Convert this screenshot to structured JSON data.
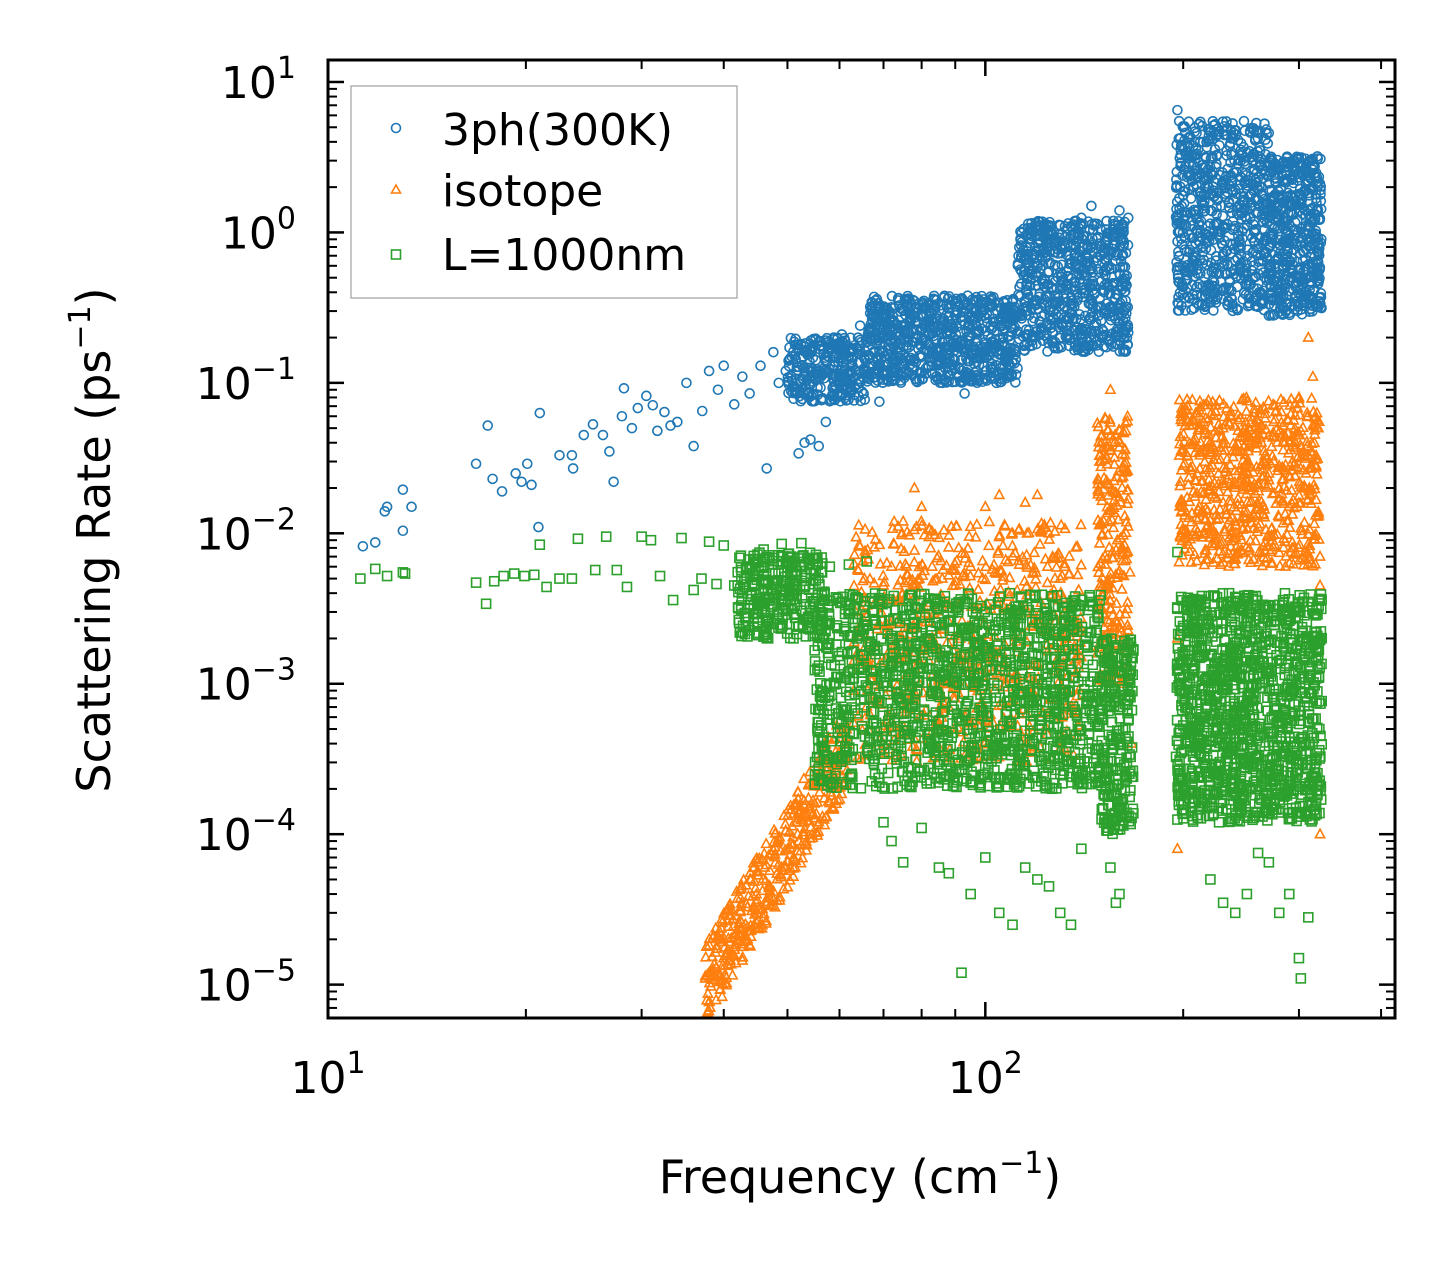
{
  "chart_data": {
    "type": "scatter",
    "title": "",
    "xlabel": "Frequency (cm",
    "xlabel_sup": "−1",
    "xlabel_end": ")",
    "ylabel": "Scattering Rate (ps",
    "ylabel_sup": "−1",
    "ylabel_end": ")",
    "xscale": "log",
    "yscale": "log",
    "xlim": [
      10,
      420
    ],
    "ylim": [
      6e-06,
      14
    ],
    "legend_position": "top-left",
    "x_ticks": [
      {
        "value": 10,
        "base": "10",
        "exp": "1"
      },
      {
        "value": 100,
        "base": "10",
        "exp": "2"
      }
    ],
    "y_ticks": [
      {
        "value": 10,
        "base": "10",
        "exp": "1"
      },
      {
        "value": 1,
        "base": "10",
        "exp": "0"
      },
      {
        "value": 0.1,
        "base": "10",
        "exp": "−1"
      },
      {
        "value": 0.01,
        "base": "10",
        "exp": "−2"
      },
      {
        "value": 0.001,
        "base": "10",
        "exp": "−3"
      },
      {
        "value": 0.0001,
        "base": "10",
        "exp": "−4"
      },
      {
        "value": 1e-05,
        "base": "10",
        "exp": "−5"
      }
    ],
    "series": [
      {
        "name": "3ph(300K)",
        "marker": "circle",
        "color": "#1f77b4",
        "points": [
          [
            11.3,
            0.0082
          ],
          [
            11.8,
            0.0087
          ],
          [
            12.2,
            0.014
          ],
          [
            12.3,
            0.015
          ],
          [
            13.0,
            0.0104
          ],
          [
            13.0,
            0.0195
          ],
          [
            13.4,
            0.015
          ],
          [
            16.8,
            0.029
          ],
          [
            17.5,
            0.052
          ],
          [
            17.8,
            0.023
          ],
          [
            18.4,
            0.019
          ],
          [
            19.3,
            0.025
          ],
          [
            19.7,
            0.022
          ],
          [
            20.1,
            0.029
          ],
          [
            20.4,
            0.021
          ],
          [
            20.9,
            0.011
          ],
          [
            21.0,
            0.063
          ],
          [
            22.5,
            0.033
          ],
          [
            23.5,
            0.033
          ],
          [
            23.6,
            0.027
          ],
          [
            24.5,
            0.045
          ],
          [
            25.3,
            0.053
          ],
          [
            26.2,
            0.045
          ],
          [
            26.8,
            0.035
          ],
          [
            27.2,
            0.022
          ],
          [
            28.0,
            0.06
          ],
          [
            28.2,
            0.092
          ],
          [
            29.0,
            0.05
          ],
          [
            29.6,
            0.068
          ],
          [
            30.5,
            0.082
          ],
          [
            31.2,
            0.071
          ],
          [
            31.7,
            0.048
          ],
          [
            32.5,
            0.064
          ],
          [
            33.2,
            0.052
          ],
          [
            34.0,
            0.055
          ],
          [
            35.1,
            0.1
          ],
          [
            36.0,
            0.038
          ],
          [
            37.1,
            0.065
          ],
          [
            38.0,
            0.12
          ],
          [
            39.2,
            0.09
          ],
          [
            40.0,
            0.13
          ],
          [
            41.5,
            0.072
          ],
          [
            42.7,
            0.11
          ],
          [
            43.8,
            0.085
          ],
          [
            45.5,
            0.13
          ],
          [
            46.5,
            0.027
          ],
          [
            47.6,
            0.16
          ],
          [
            48.5,
            0.1
          ],
          [
            49.7,
            0.12
          ],
          [
            51.3,
            0.15
          ],
          [
            52.0,
            0.034
          ],
          [
            53.1,
            0.04
          ],
          [
            54.2,
            0.042
          ],
          [
            55.8,
            0.038
          ],
          [
            57.2,
            0.055
          ],
          [
            58.8,
            0.2
          ],
          [
            60.5,
            0.21
          ],
          [
            62.3,
            0.09
          ],
          [
            64.5,
            0.24
          ],
          [
            66.8,
            0.29
          ],
          [
            69.0,
            0.075
          ],
          [
            70.0,
            0.13
          ],
          [
            72.5,
            0.26
          ],
          [
            75.0,
            0.24
          ],
          [
            78.0,
            0.35
          ],
          [
            80.0,
            0.2
          ],
          [
            83.0,
            0.29
          ],
          [
            86.0,
            0.1
          ],
          [
            90.0,
            0.18
          ],
          [
            93.0,
            0.085
          ],
          [
            97.0,
            0.31
          ],
          [
            100.0,
            0.22
          ],
          [
            104.0,
            0.1
          ],
          [
            108.0,
            0.27
          ],
          [
            112.0,
            0.22
          ],
          [
            116.0,
            0.5
          ],
          [
            120.0,
            0.62
          ],
          [
            125.0,
            0.55
          ],
          [
            130.0,
            0.8
          ],
          [
            135.0,
            0.95
          ],
          [
            140.0,
            1.25
          ],
          [
            145.0,
            1.5
          ],
          [
            150.0,
            0.7
          ],
          [
            155.0,
            1.0
          ],
          [
            160.0,
            1.4
          ],
          [
            165.0,
            1.25
          ],
          [
            196.0,
            6.5
          ],
          [
            200.0,
            5.0
          ],
          [
            210.0,
            2.6
          ],
          [
            220.0,
            1.8
          ],
          [
            230.0,
            1.1
          ],
          [
            240.0,
            0.65
          ],
          [
            250.0,
            0.45
          ],
          [
            260.0,
            0.32
          ],
          [
            270.0,
            0.28
          ],
          [
            280.0,
            0.42
          ],
          [
            290.0,
            0.9
          ],
          [
            300.0,
            1.8
          ],
          [
            310.0,
            2.4
          ],
          [
            315.0,
            2.8
          ],
          [
            320.0,
            3.2
          ]
        ],
        "bands": [
          {
            "x_from": 50,
            "x_to": 66,
            "y_low": 0.075,
            "y_high": 0.2,
            "count": 300
          },
          {
            "x_from": 66,
            "x_to": 112,
            "y_low": 0.1,
            "y_high": 0.38,
            "count": 800
          },
          {
            "x_from": 112,
            "x_to": 165,
            "y_low": 0.16,
            "y_high": 1.2,
            "count": 700
          },
          {
            "x_from": 195,
            "x_to": 270,
            "y_low": 0.3,
            "y_high": 5.5,
            "count": 700
          },
          {
            "x_from": 270,
            "x_to": 325,
            "y_low": 0.28,
            "y_high": 3.2,
            "count": 500
          }
        ]
      },
      {
        "name": "isotope",
        "marker": "triangle",
        "color": "#ff7f0e",
        "points": [
          [
            37.5,
            1.1e-05
          ],
          [
            38.0,
            1.2e-05
          ],
          [
            39.0,
            1.3e-05
          ],
          [
            40.5,
            1.6e-05
          ],
          [
            42.0,
            2e-05
          ],
          [
            43.5,
            2.4e-05
          ],
          [
            45.0,
            3e-05
          ],
          [
            47.0,
            4.2e-05
          ],
          [
            49.0,
            6e-05
          ],
          [
            51.0,
            8.5e-05
          ],
          [
            53.0,
            0.00012
          ],
          [
            55.0,
            0.00016
          ],
          [
            57.0,
            0.00022
          ],
          [
            59.0,
            0.0003
          ],
          [
            61.0,
            0.0004
          ],
          [
            63.0,
            0.00055
          ],
          [
            66.0,
            0.0028
          ],
          [
            68.0,
            0.0035
          ],
          [
            70.0,
            0.0045
          ],
          [
            72.0,
            0.006
          ],
          [
            75.0,
            0.012
          ],
          [
            78.0,
            0.02
          ],
          [
            80.0,
            0.015
          ],
          [
            83.0,
            0.006
          ],
          [
            86.0,
            0.005
          ],
          [
            90.0,
            0.0045
          ],
          [
            95.0,
            0.006
          ],
          [
            100.0,
            0.015
          ],
          [
            105.0,
            0.018
          ],
          [
            110.0,
            0.01
          ],
          [
            115.0,
            0.016
          ],
          [
            120.0,
            0.018
          ],
          [
            125.0,
            0.01
          ],
          [
            130.0,
            0.005
          ],
          [
            140.0,
            0.0015
          ],
          [
            150.0,
            0.03
          ],
          [
            155.0,
            0.09
          ],
          [
            160.0,
            0.04
          ],
          [
            163.0,
            0.013
          ],
          [
            196.0,
            0.002
          ],
          [
            200.0,
            0.01
          ],
          [
            210.0,
            0.025
          ],
          [
            220.0,
            0.04
          ],
          [
            230.0,
            0.05
          ],
          [
            240.0,
            0.035
          ],
          [
            250.0,
            0.03
          ],
          [
            260.0,
            0.05
          ],
          [
            270.0,
            0.025
          ],
          [
            280.0,
            0.02
          ],
          [
            290.0,
            0.04
          ],
          [
            300.0,
            0.08
          ],
          [
            310.0,
            0.2
          ],
          [
            315.0,
            0.11
          ],
          [
            320.0,
            0.05
          ],
          [
            323.0,
            0.007
          ],
          [
            323.0,
            0.0045
          ],
          [
            323.0,
            0.0001
          ],
          [
            196.0,
            8e-05
          ],
          [
            166.0,
            0.0055
          ],
          [
            167.0,
            0.0004
          ]
        ],
        "bands": [
          {
            "x_from": 37.5,
            "x_to": 62,
            "y_low": 1e-05,
            "y_high": 0.0004,
            "count": 400,
            "trend": "rising"
          },
          {
            "x_from": 63,
            "x_to": 140,
            "y_low": 0.0003,
            "y_high": 0.012,
            "count": 700
          },
          {
            "x_from": 148,
            "x_to": 165,
            "y_low": 0.001,
            "y_high": 0.06,
            "count": 250
          },
          {
            "x_from": 197,
            "x_to": 322,
            "y_low": 0.006,
            "y_high": 0.08,
            "count": 700
          }
        ]
      },
      {
        "name": "L=1000nm",
        "marker": "square",
        "color": "#2ca02c",
        "points": [
          [
            11.2,
            0.005
          ],
          [
            11.8,
            0.0058
          ],
          [
            12.3,
            0.0052
          ],
          [
            13.0,
            0.0055
          ],
          [
            13.1,
            0.0054
          ],
          [
            16.8,
            0.0047
          ],
          [
            17.4,
            0.0034
          ],
          [
            17.9,
            0.0048
          ],
          [
            18.5,
            0.0052
          ],
          [
            19.2,
            0.0054
          ],
          [
            19.9,
            0.0052
          ],
          [
            20.6,
            0.0053
          ],
          [
            21.0,
            0.0084
          ],
          [
            21.5,
            0.0044
          ],
          [
            22.5,
            0.005
          ],
          [
            23.5,
            0.005
          ],
          [
            24.0,
            0.0092
          ],
          [
            25.5,
            0.0057
          ],
          [
            26.5,
            0.0095
          ],
          [
            27.5,
            0.0057
          ],
          [
            28.5,
            0.0044
          ],
          [
            30.0,
            0.0095
          ],
          [
            31.0,
            0.009
          ],
          [
            32.0,
            0.0052
          ],
          [
            33.5,
            0.0036
          ],
          [
            34.5,
            0.0093
          ],
          [
            36.0,
            0.0042
          ],
          [
            37.0,
            0.005
          ],
          [
            38.0,
            0.0088
          ],
          [
            39.0,
            0.0046
          ],
          [
            40.0,
            0.0083
          ],
          [
            41.5,
            0.0045
          ],
          [
            43.0,
            0.0044
          ],
          [
            44.5,
            0.0046
          ],
          [
            46.0,
            0.0078
          ],
          [
            47.5,
            0.004
          ],
          [
            49.0,
            0.0085
          ],
          [
            51.0,
            0.0062
          ],
          [
            52.5,
            0.0086
          ],
          [
            55.0,
            0.0068
          ],
          [
            58.0,
            0.006
          ],
          [
            62.0,
            0.0062
          ],
          [
            66.0,
            0.0065
          ],
          [
            70.0,
            0.00012
          ],
          [
            72.0,
            9e-05
          ],
          [
            75.0,
            6.5e-05
          ],
          [
            80.0,
            0.00011
          ],
          [
            85.0,
            6e-05
          ],
          [
            88.0,
            5.5e-05
          ],
          [
            92.0,
            1.2e-05
          ],
          [
            95.0,
            4e-05
          ],
          [
            100.0,
            7e-05
          ],
          [
            105.0,
            3e-05
          ],
          [
            110.0,
            2.5e-05
          ],
          [
            115.0,
            6e-05
          ],
          [
            120.0,
            5e-05
          ],
          [
            125.0,
            4.5e-05
          ],
          [
            130.0,
            3e-05
          ],
          [
            135.0,
            2.5e-05
          ],
          [
            140.0,
            8e-05
          ],
          [
            155.0,
            6e-05
          ],
          [
            158.0,
            3.5e-05
          ],
          [
            160.0,
            4e-05
          ],
          [
            220.0,
            5e-05
          ],
          [
            230.0,
            3.5e-05
          ],
          [
            240.0,
            3e-05
          ],
          [
            250.0,
            4e-05
          ],
          [
            260.0,
            7.5e-05
          ],
          [
            270.0,
            6.5e-05
          ],
          [
            280.0,
            3e-05
          ],
          [
            290.0,
            4e-05
          ],
          [
            300.0,
            1.5e-05
          ],
          [
            302.0,
            1.1e-05
          ],
          [
            310.0,
            2.8e-05
          ],
          [
            320.0,
            0.0019
          ],
          [
            196.0,
            0.0075
          ],
          [
            205.0,
            0.0035
          ],
          [
            300.0,
            0.003
          ]
        ],
        "bands": [
          {
            "x_from": 42,
            "x_to": 57,
            "y_low": 0.002,
            "y_high": 0.0075,
            "count": 300
          },
          {
            "x_from": 55,
            "x_to": 150,
            "y_low": 0.0002,
            "y_high": 0.004,
            "count": 1400
          },
          {
            "x_from": 150,
            "x_to": 168,
            "y_low": 0.0001,
            "y_high": 0.002,
            "count": 250
          },
          {
            "x_from": 195,
            "x_to": 325,
            "y_low": 0.00012,
            "y_high": 0.004,
            "count": 1300
          }
        ]
      }
    ]
  }
}
